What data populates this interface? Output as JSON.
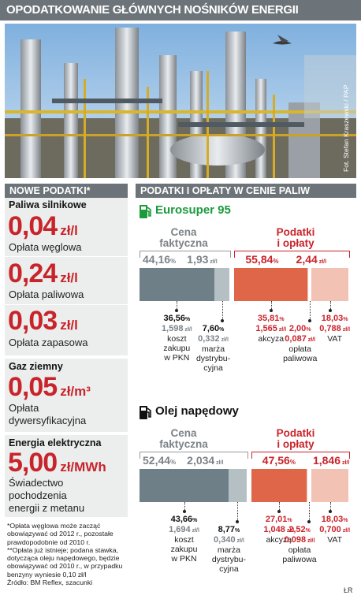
{
  "title": "OPODATKOWANIE GŁÓWNYCH NOŚNIKÓW ENERGII",
  "photo_credit": "Fot. Stefan Kraszewski / PAP",
  "left": {
    "header": "NOWE PODATKI*",
    "fuel_label": "Paliwa silnikowe",
    "items": [
      {
        "value": "0,04",
        "unit": "zł/l",
        "desc": "Opłata węglowa"
      },
      {
        "value": "0,24",
        "unit": "zł/l",
        "desc": "Opłata paliwowa"
      },
      {
        "value": "0,03",
        "unit": "zł/l",
        "desc": "Opłata zapasowa"
      }
    ],
    "gas": {
      "label": "Gaz ziemny",
      "value": "0,05",
      "unit": "zł/m³",
      "desc1": "Opłata",
      "desc2": "dywersyfikacyjna"
    },
    "electric": {
      "label": "Energia elektryczna",
      "value": "5,00",
      "unit": "zł/MWh",
      "desc1": "Świadectwo",
      "desc2": "pochodzenia",
      "desc3": "energii z metanu"
    },
    "notes": [
      "*Opłata węglowa może zacząć",
      "obowiązywać od 2012 r., pozostałe",
      "prawdopodobnie od 2010 r.",
      "**Opłata już istnieje; podana stawka,",
      "dotycząca oleju napędowego, będzie",
      "obowiązywać od 2010 r., w przypadku",
      "benzyny wyniesie 0,10 zł/l",
      "Źródło: BM Reflex, szacunki"
    ]
  },
  "right": {
    "header": "PODATKI I OPŁATY W CENIE PALIW",
    "author": "ŁR",
    "colors": {
      "price_dark": "#6f7f87",
      "price_light": "#b5c0c5",
      "tax_dark": "#e0664a",
      "tax_light": "#f2c2b4"
    },
    "blocks": [
      {
        "fuel": "Eurosuper 95",
        "icon": "fuel-pump-icon",
        "price_title1": "Cena",
        "price_title2": "faktyczna",
        "price_pct": "44,16",
        "price_zl": "1,93",
        "tax_title1": "Podatki",
        "tax_title2": "i opłaty",
        "tax_pct": "55,84",
        "tax_zl": "2,44",
        "pct_sign": "%",
        "zl_unit": "zł/l",
        "segments": [
          36.56,
          7.6,
          35.81,
          2.0,
          18.03
        ],
        "labels": [
          {
            "pct": "36,56",
            "zl": "1,598",
            "lines": [
              "koszt",
              "zakupu",
              "w PKN"
            ]
          },
          {
            "pct": "7,60",
            "zl": "0,332",
            "lines": [
              "marża",
              "dystrybu-",
              "cyjna"
            ]
          },
          {
            "pct": "35,81",
            "zl": "1,565",
            "lines": [
              "akcyza"
            ]
          },
          {
            "pct": "2,00",
            "zl": "0,087",
            "lines": [
              "opłata",
              "paliwowa"
            ]
          },
          {
            "pct": "18,03",
            "zl": "0,788",
            "lines": [
              "VAT"
            ]
          }
        ]
      },
      {
        "fuel": "Olej napędowy",
        "icon": "fuel-pump-icon",
        "price_title1": "Cena",
        "price_title2": "faktyczna",
        "price_pct": "52,44",
        "price_zl": "2,034",
        "tax_title1": "Podatki",
        "tax_title2": "i opłaty",
        "tax_pct": "47,56",
        "tax_zl": "1,846",
        "pct_sign": "%",
        "zl_unit": "zł/l",
        "segments": [
          43.66,
          8.77,
          27.01,
          2.52,
          18.03
        ],
        "labels": [
          {
            "pct": "43,66",
            "zl": "1,694",
            "lines": [
              "koszt",
              "zakupu",
              "w PKN"
            ]
          },
          {
            "pct": "8,77",
            "zl": "0,340",
            "lines": [
              "marża",
              "dystrybu-",
              "cyjna"
            ]
          },
          {
            "pct": "27,01",
            "zl": "1,048",
            "lines": [
              "akcyza"
            ]
          },
          {
            "pct": "2,52",
            "zl": "0,098",
            "lines": [
              "opłata",
              "paliwowa"
            ]
          },
          {
            "pct": "18,03",
            "zl": "0,700",
            "lines": [
              "VAT"
            ]
          }
        ]
      }
    ]
  }
}
